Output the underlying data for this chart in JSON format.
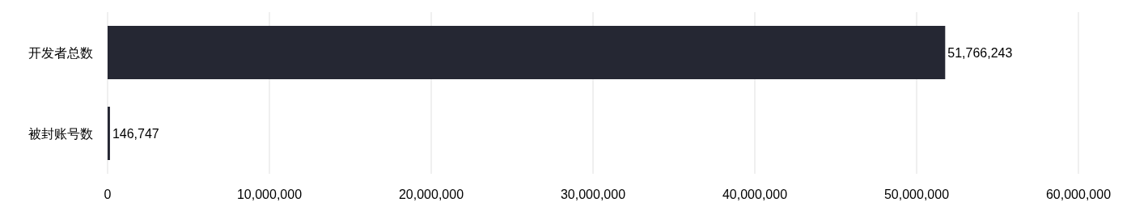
{
  "chart_data": {
    "type": "bar",
    "orientation": "horizontal",
    "categories": [
      "开发者总数",
      "被封账号数"
    ],
    "values": [
      51766243,
      146747
    ],
    "value_labels": [
      "51,766,243",
      "146,747"
    ],
    "color": "#252733",
    "xlim": [
      0,
      60000000
    ],
    "xticks": [
      0,
      {
        "value": 10000000,
        "label": "10,000,000"
      },
      {
        "value": 20000000,
        "label": "20,000,000"
      },
      {
        "value": 30000000,
        "label": "30,000,000"
      },
      {
        "value": 40000000,
        "label": "40,000,000"
      },
      {
        "value": 50000000,
        "label": "50,000,000"
      },
      {
        "value": 60000000,
        "label": "60,000,000"
      }
    ],
    "grid": "x"
  }
}
